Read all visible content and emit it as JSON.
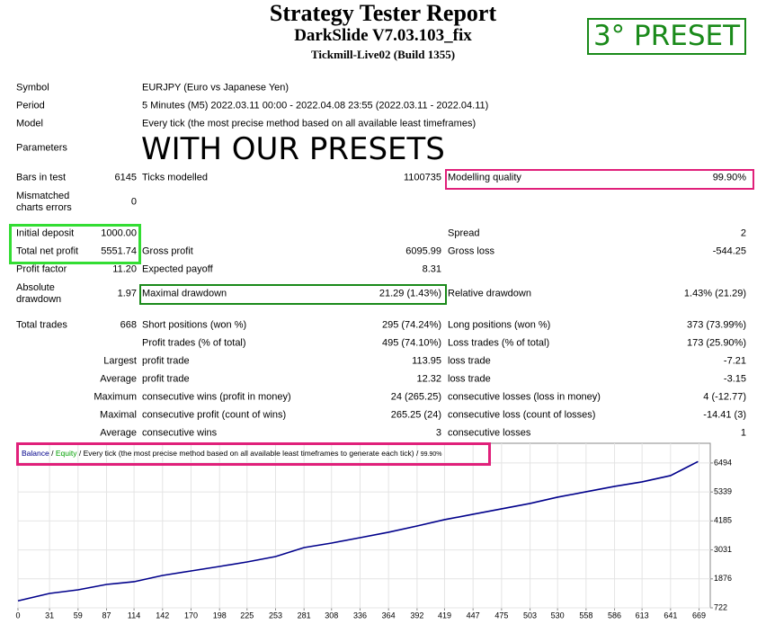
{
  "header": {
    "title": "Strategy Tester Report",
    "subtitle": "DarkSlide V7.03.103_fix",
    "server": "Tickmill-Live02 (Build 1355)"
  },
  "overlay": {
    "preset": "3° PRESET",
    "note": "WITH OUR PRESETS"
  },
  "rows": [
    [
      "Symbol",
      null,
      "EURJPY (Euro vs Japanese Yen)",
      null,
      null,
      null
    ],
    [
      "Period",
      null,
      "5 Minutes (M5) 2022.03.11 00:00 - 2022.04.08 23:55 (2022.03.11 - 2022.04.11)",
      null,
      null,
      null
    ],
    [
      "Model",
      null,
      "Every tick (the most precise method based on all available least timeframes)",
      null,
      null,
      null
    ],
    [
      "Parameters",
      null,
      null,
      null,
      null,
      null
    ],
    [
      "Bars in test",
      "6145",
      "Ticks modelled",
      "1100735",
      "Modelling quality",
      "99.90%"
    ],
    [
      "Mismatched charts errors",
      "0",
      null,
      null,
      null,
      null
    ],
    [
      "Initial deposit",
      "1000.00",
      null,
      null,
      "Spread",
      "2"
    ],
    [
      "Total net profit",
      "5551.74",
      "Gross profit",
      "6095.99",
      "Gross loss",
      "-544.25"
    ],
    [
      "Profit factor",
      "11.20",
      "Expected payoff",
      "8.31",
      null,
      null
    ],
    [
      "Absolute drawdown",
      "1.97",
      "Maximal drawdown",
      "21.29 (1.43%)",
      "Relative drawdown",
      "1.43% (21.29)"
    ],
    [
      "Total trades",
      "668",
      "Short positions (won %)",
      "295 (74.24%)",
      "Long positions (won %)",
      "373 (73.99%)"
    ],
    [
      null,
      null,
      "Profit trades (% of total)",
      "495 (74.10%)",
      "Loss trades (% of total)",
      "173 (25.90%)"
    ],
    [
      null,
      "Largest",
      "profit trade",
      "113.95",
      "loss trade",
      "-7.21"
    ],
    [
      null,
      "Average",
      "profit trade",
      "12.32",
      "loss trade",
      "-3.15"
    ],
    [
      null,
      "Maximum",
      "consecutive wins (profit in money)",
      "24 (265.25)",
      "consecutive losses (loss in money)",
      "4 (-12.77)"
    ],
    [
      null,
      "Maximal",
      "consecutive profit (count of wins)",
      "265.25 (24)",
      "consecutive loss (count of losses)",
      "-14.41 (3)"
    ],
    [
      null,
      "Average",
      "consecutive wins",
      "3",
      "consecutive losses",
      "1"
    ]
  ],
  "chart_data": {
    "type": "line",
    "legend_separator": "/",
    "legend_note": "Every tick (the most precise method based on all available least timeframes to generate each tick)",
    "legend_quality": "99.90%",
    "x": [
      0,
      31,
      59,
      87,
      114,
      142,
      170,
      198,
      225,
      253,
      281,
      308,
      336,
      364,
      392,
      419,
      447,
      475,
      503,
      530,
      558,
      586,
      613,
      641,
      668
    ],
    "series": [
      {
        "name": "Balance",
        "color": "#00008b",
        "values": [
          1000,
          1296,
          1439,
          1654,
          1762,
          2013,
          2192,
          2371,
          2550,
          2765,
          3124,
          3303,
          3518,
          3734,
          3984,
          4235,
          4450,
          4666,
          4881,
          5132,
          5347,
          5562,
          5741,
          5992,
          6552
        ]
      },
      {
        "name": "Equity",
        "color": "#00a000"
      }
    ],
    "xlim": [
      0,
      680
    ],
    "xticks": [
      0,
      31,
      59,
      87,
      114,
      142,
      170,
      198,
      225,
      253,
      281,
      308,
      336,
      364,
      392,
      419,
      447,
      475,
      503,
      530,
      558,
      586,
      613,
      641,
      669
    ],
    "ylim": [
      722,
      7280
    ],
    "yticks": [
      722,
      1876,
      3031,
      4185,
      5339,
      6494
    ],
    "grid": true
  }
}
